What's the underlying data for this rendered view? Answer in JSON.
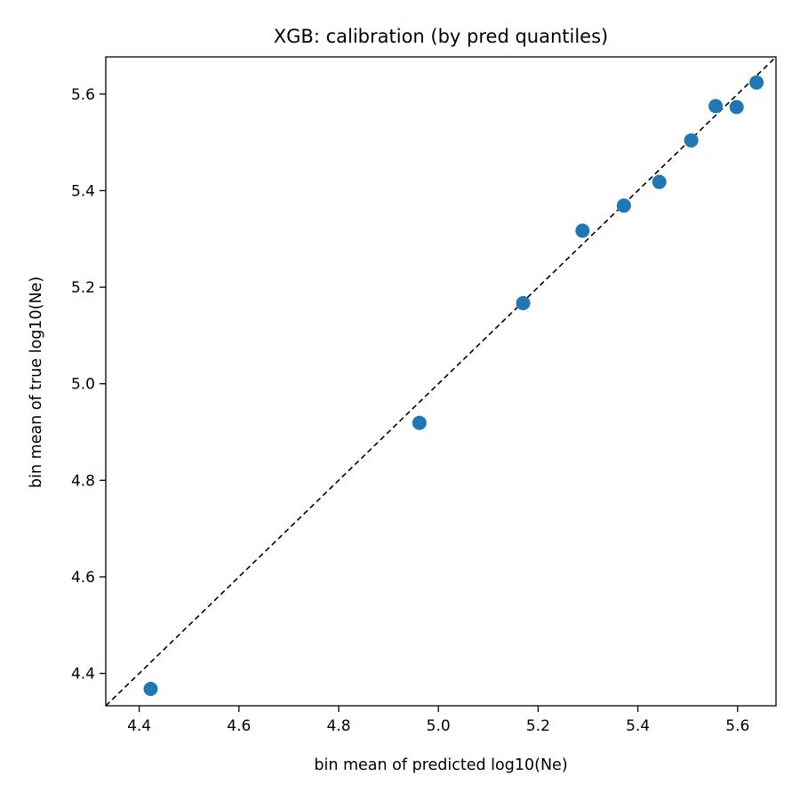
{
  "chart_data": {
    "type": "scatter",
    "title": "XGB: calibration (by pred quantiles)",
    "xlabel": "bin mean of predicted log10(Ne)",
    "ylabel": "bin mean of true log10(Ne)",
    "xlim": [
      4.333,
      5.677
    ],
    "ylim": [
      4.333,
      5.677
    ],
    "xticks": [
      "4.4",
      "4.6",
      "4.8",
      "5.0",
      "5.2",
      "5.4",
      "5.6"
    ],
    "yticks": [
      "4.4",
      "4.6",
      "4.8",
      "5.0",
      "5.2",
      "5.4",
      "5.6"
    ],
    "grid": false,
    "reference_line": {
      "style": "dashed",
      "color": "#000000",
      "from": [
        4.333,
        4.333
      ],
      "to": [
        5.677,
        5.677
      ]
    },
    "series": [
      {
        "color": "#1f77b4",
        "points": [
          {
            "x": 4.423,
            "y": 4.368
          },
          {
            "x": 4.962,
            "y": 4.919
          },
          {
            "x": 5.17,
            "y": 5.167
          },
          {
            "x": 5.289,
            "y": 5.317
          },
          {
            "x": 5.372,
            "y": 5.369
          },
          {
            "x": 5.443,
            "y": 5.418
          },
          {
            "x": 5.507,
            "y": 5.504
          },
          {
            "x": 5.556,
            "y": 5.575
          },
          {
            "x": 5.598,
            "y": 5.573
          },
          {
            "x": 5.638,
            "y": 5.624
          }
        ]
      }
    ]
  }
}
